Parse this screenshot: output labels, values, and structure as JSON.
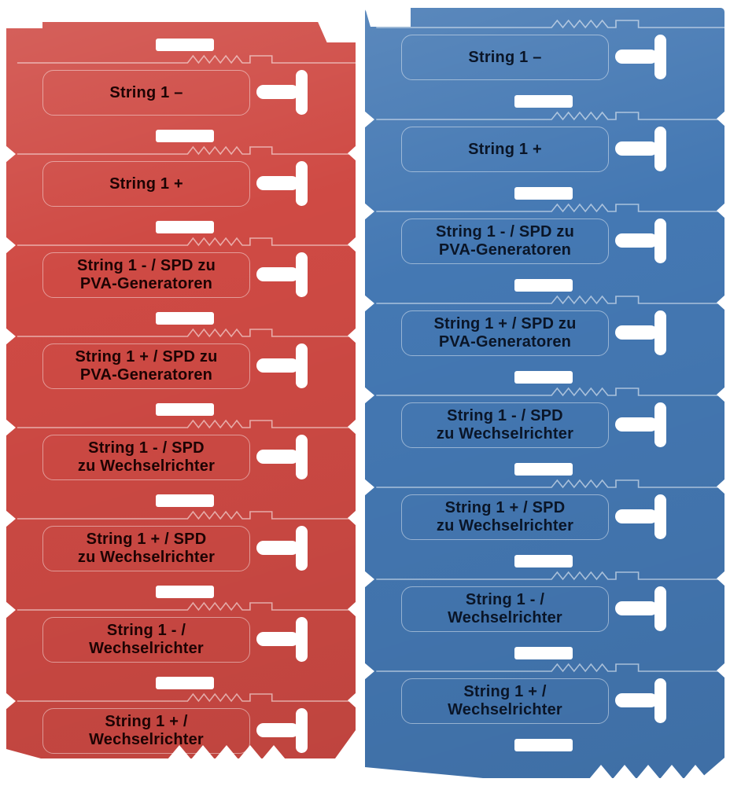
{
  "page": {
    "background": "#ffffff"
  },
  "sheets": [
    {
      "id": "red-sheet",
      "color": "#cf4a44",
      "text_color": "#1d0303",
      "cutouts": {
        "t_slot": "t-slot-cutout",
        "dash": "dash-cutout"
      },
      "labels": [
        {
          "line1": "String 1 –",
          "line2": ""
        },
        {
          "line1": "String 1 +",
          "line2": ""
        },
        {
          "line1": "String 1 - / SPD zu",
          "line2": "PVA-Generatoren"
        },
        {
          "line1": "String 1 + / SPD zu",
          "line2": "PVA-Generatoren"
        },
        {
          "line1": "String 1 - / SPD",
          "line2": "zu Wechselrichter"
        },
        {
          "line1": "String 1 + / SPD",
          "line2": "zu Wechselrichter"
        },
        {
          "line1": "String 1 - /",
          "line2": "Wechselrichter"
        },
        {
          "line1": "String 1 + /",
          "line2": "Wechselrichter"
        }
      ]
    },
    {
      "id": "blue-sheet",
      "color": "#4478b3",
      "text_color": "#0a1527",
      "cutouts": {
        "t_slot": "t-slot-cutout",
        "dash": "dash-cutout"
      },
      "labels": [
        {
          "line1": "String 1 –",
          "line2": ""
        },
        {
          "line1": "String 1 +",
          "line2": ""
        },
        {
          "line1": "String 1 - / SPD zu",
          "line2": "PVA-Generatoren"
        },
        {
          "line1": "String 1 + / SPD zu",
          "line2": "PVA-Generatoren"
        },
        {
          "line1": "String 1 - / SPD",
          "line2": "zu Wechselrichter"
        },
        {
          "line1": "String 1 + / SPD",
          "line2": "zu Wechselrichter"
        },
        {
          "line1": "String 1 - /",
          "line2": "Wechselrichter"
        },
        {
          "line1": "String 1 + /",
          "line2": "Wechselrichter"
        }
      ]
    }
  ]
}
